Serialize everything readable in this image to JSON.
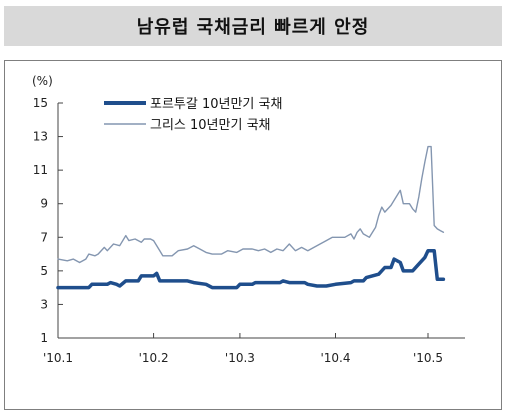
{
  "chart_data": {
    "type": "line",
    "title": "남유럽 국채금리 빠르게 안정",
    "unit_label": "(%)",
    "ylim": [
      1,
      15
    ],
    "y_ticks": [
      1,
      3,
      5,
      7,
      9,
      11,
      13,
      15
    ],
    "x_ticks": [
      {
        "label": "'10.1",
        "x": 0
      },
      {
        "label": "'10.2",
        "x": 31
      },
      {
        "label": "'10.3",
        "x": 59
      },
      {
        "label": "'10.4",
        "x": 90
      },
      {
        "label": "'10.5",
        "x": 120
      }
    ],
    "xlim": [
      0,
      132
    ],
    "grid": false,
    "legend_position": "top-left",
    "series": [
      {
        "name": "포르투갈 10년만기 국채",
        "color": "#1f4e8c",
        "style": "thick",
        "points": [
          [
            0,
            4.0
          ],
          [
            6,
            4.0
          ],
          [
            10,
            4.0
          ],
          [
            11,
            4.2
          ],
          [
            16,
            4.2
          ],
          [
            17,
            4.3
          ],
          [
            19,
            4.2
          ],
          [
            20,
            4.1
          ],
          [
            22,
            4.4
          ],
          [
            26,
            4.4
          ],
          [
            27,
            4.7
          ],
          [
            29,
            4.7
          ],
          [
            31,
            4.7
          ],
          [
            32,
            4.85
          ],
          [
            33,
            4.4
          ],
          [
            37,
            4.4
          ],
          [
            42,
            4.4
          ],
          [
            44,
            4.3
          ],
          [
            48,
            4.2
          ],
          [
            50,
            4.0
          ],
          [
            56,
            4.0
          ],
          [
            58,
            4.0
          ],
          [
            59,
            4.2
          ],
          [
            63,
            4.2
          ],
          [
            64,
            4.3
          ],
          [
            72,
            4.3
          ],
          [
            73,
            4.4
          ],
          [
            75,
            4.3
          ],
          [
            80,
            4.3
          ],
          [
            81,
            4.2
          ],
          [
            84,
            4.1
          ],
          [
            87,
            4.1
          ],
          [
            90,
            4.2
          ],
          [
            95,
            4.3
          ],
          [
            96,
            4.4
          ],
          [
            99,
            4.4
          ],
          [
            100,
            4.6
          ],
          [
            104,
            4.8
          ],
          [
            106,
            5.2
          ],
          [
            108,
            5.2
          ],
          [
            109,
            5.7
          ],
          [
            111,
            5.5
          ],
          [
            112,
            5.0
          ],
          [
            115,
            5.0
          ],
          [
            117,
            5.4
          ],
          [
            119,
            5.8
          ],
          [
            120,
            6.2
          ],
          [
            122,
            6.2
          ],
          [
            123,
            4.5
          ],
          [
            125,
            4.5
          ]
        ]
      },
      {
        "name": "그리스 10년만기 국채",
        "color": "#8496b0",
        "style": "thin",
        "points": [
          [
            0,
            5.7
          ],
          [
            3,
            5.6
          ],
          [
            5,
            5.7
          ],
          [
            7,
            5.5
          ],
          [
            9,
            5.7
          ],
          [
            10,
            6.0
          ],
          [
            12,
            5.9
          ],
          [
            13,
            6.0
          ],
          [
            15,
            6.4
          ],
          [
            16,
            6.2
          ],
          [
            18,
            6.6
          ],
          [
            20,
            6.5
          ],
          [
            22,
            7.1
          ],
          [
            23,
            6.8
          ],
          [
            25,
            6.9
          ],
          [
            27,
            6.7
          ],
          [
            28,
            6.9
          ],
          [
            30,
            6.9
          ],
          [
            31,
            6.8
          ],
          [
            33,
            6.2
          ],
          [
            34,
            5.9
          ],
          [
            37,
            5.9
          ],
          [
            39,
            6.2
          ],
          [
            42,
            6.3
          ],
          [
            44,
            6.5
          ],
          [
            46,
            6.3
          ],
          [
            48,
            6.1
          ],
          [
            50,
            6.0
          ],
          [
            53,
            6.0
          ],
          [
            55,
            6.2
          ],
          [
            58,
            6.1
          ],
          [
            60,
            6.3
          ],
          [
            63,
            6.3
          ],
          [
            65,
            6.2
          ],
          [
            67,
            6.3
          ],
          [
            69,
            6.1
          ],
          [
            71,
            6.3
          ],
          [
            73,
            6.2
          ],
          [
            75,
            6.6
          ],
          [
            77,
            6.2
          ],
          [
            79,
            6.4
          ],
          [
            81,
            6.2
          ],
          [
            83,
            6.4
          ],
          [
            85,
            6.6
          ],
          [
            87,
            6.8
          ],
          [
            89,
            7.0
          ],
          [
            91,
            7.0
          ],
          [
            93,
            7.0
          ],
          [
            95,
            7.2
          ],
          [
            96,
            6.9
          ],
          [
            97,
            7.3
          ],
          [
            98,
            7.5
          ],
          [
            99,
            7.2
          ],
          [
            101,
            7.0
          ],
          [
            103,
            7.6
          ],
          [
            104,
            8.3
          ],
          [
            105,
            8.8
          ],
          [
            106,
            8.5
          ],
          [
            108,
            8.9
          ],
          [
            110,
            9.5
          ],
          [
            111,
            9.8
          ],
          [
            112,
            9.0
          ],
          [
            114,
            9.0
          ],
          [
            115,
            8.7
          ],
          [
            116,
            8.5
          ],
          [
            117,
            9.4
          ],
          [
            118,
            10.5
          ],
          [
            119,
            11.5
          ],
          [
            120,
            12.4
          ],
          [
            121,
            12.4
          ],
          [
            122,
            7.7
          ],
          [
            123,
            7.5
          ],
          [
            124,
            7.4
          ],
          [
            125,
            7.3
          ]
        ]
      }
    ]
  }
}
